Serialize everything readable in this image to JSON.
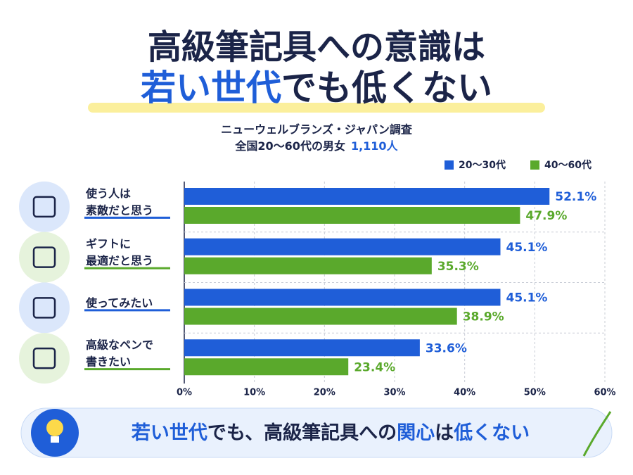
{
  "title": {
    "line1": "高級筆記具への意識は",
    "line2": [
      "若い世代",
      "でも低くない"
    ]
  },
  "subtitle": {
    "line1": "ニューウェルブランズ・ジャパン調査",
    "line2": [
      "全国20〜60代の男女",
      "1,110人"
    ]
  },
  "chart_data": {
    "type": "hbar",
    "categories": [
      [
        "使う人は",
        "素敵だと思う"
      ],
      [
        "ギフトに",
        "最適だと思う"
      ],
      [
        "使ってみたい"
      ],
      [
        "高級なペンで",
        "書きたい"
      ]
    ],
    "series": [
      {
        "name": "20〜30代",
        "color": "#1f5ed8",
        "values": [
          52.1,
          45.1,
          45.1,
          33.6
        ],
        "value_labels": [
          "52.1%",
          "45.1%",
          "45.1%",
          "33.6%"
        ]
      },
      {
        "name": "40〜60代",
        "color": "#5aa92c",
        "values": [
          47.9,
          35.3,
          38.9,
          23.4
        ],
        "value_labels": [
          "47.9%",
          "35.3%",
          "38.9%",
          "23.4%"
        ]
      }
    ],
    "xlim": [
      0,
      60
    ],
    "xticks": [
      {
        "value": 0,
        "label": "0%"
      },
      {
        "value": 10,
        "label": "10%"
      },
      {
        "value": 20,
        "label": "20%"
      },
      {
        "value": 30,
        "label": "30%"
      },
      {
        "value": 40,
        "label": "40%"
      },
      {
        "value": 50,
        "label": "50%"
      },
      {
        "value": 60,
        "label": "60%"
      }
    ],
    "grid": true
  },
  "footer": [
    "若い世代",
    "でも、高級筆記具への",
    "関心",
    "は",
    "低くない"
  ]
}
